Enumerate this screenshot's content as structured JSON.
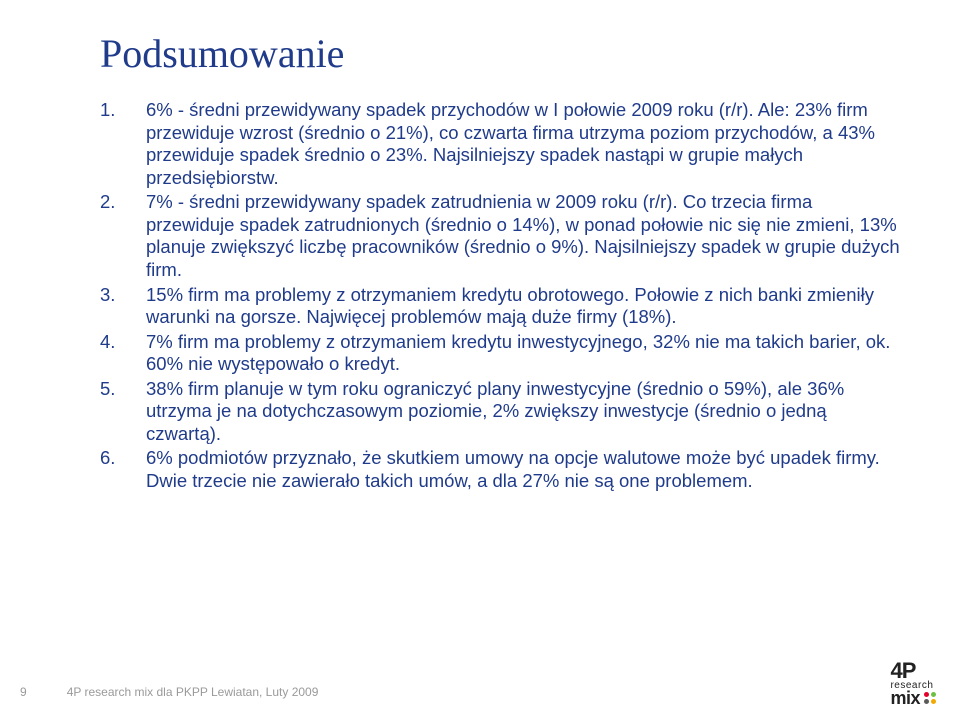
{
  "title": "Podsumowanie",
  "items": [
    "6% - średni przewidywany spadek przychodów w I połowie 2009 roku (r/r). Ale: 23% firm przewiduje wzrost (średnio o 21%), co czwarta firma utrzyma poziom przychodów, a 43% przewiduje spadek średnio o 23%. Najsilniejszy spadek nastąpi w grupie małych przedsiębiorstw.",
    "7% - średni przewidywany spadek zatrudnienia w 2009 roku (r/r). Co trzecia firma przewiduje spadek zatrudnionych (średnio o 14%), w ponad połowie nic się nie zmieni, 13% planuje zwiększyć liczbę pracowników (średnio o 9%). Najsilniejszy spadek w grupie dużych firm.",
    "15%  firm ma problemy z otrzymaniem kredytu obrotowego. Połowie z nich banki zmieniły warunki na gorsze. Najwięcej problemów mają duże firmy (18%).",
    "7% firm ma problemy z otrzymaniem kredytu inwestycyjnego, 32% nie ma takich barier, ok. 60% nie występowało o kredyt.",
    "38% firm planuje w tym roku ograniczyć plany inwestycyjne (średnio o 59%), ale 36% utrzyma je na dotychczasowym poziomie, 2% zwiększy inwestycje (średnio o jedną czwartą).",
    "6% podmiotów przyznało, że skutkiem umowy na opcje walutowe może być upadek firmy. Dwie trzecie nie zawierało takich umów, a dla 27% nie są one problemem."
  ],
  "footer": {
    "page": "9",
    "text": "4P research mix dla PKPP Lewiatan, Luty 2009"
  },
  "logo": {
    "top": "4P",
    "mid": "research",
    "bot": "mix",
    "dots": [
      "#e4002b",
      "#6fbf44",
      "#5a5a5a",
      "#f2a900"
    ]
  },
  "colors": {
    "text": "#1f3b8a",
    "muted": "#9a9a9a",
    "bg": "#ffffff"
  }
}
